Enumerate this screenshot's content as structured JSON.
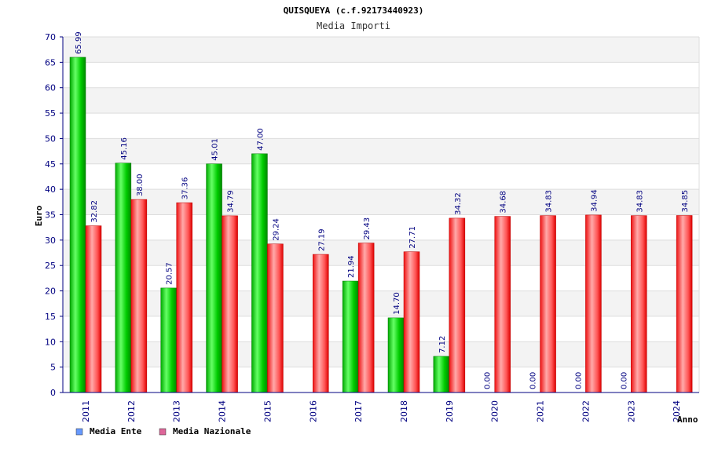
{
  "chart_data": {
    "type": "bar",
    "title": "QUISQUEYA (c.f.92173440923)",
    "subtitle": "Media Importi",
    "ylabel": "Euro",
    "xlabel": "Anno",
    "ylim": [
      0,
      70
    ],
    "yticks": [
      0,
      5,
      10,
      15,
      20,
      25,
      30,
      35,
      40,
      45,
      50,
      55,
      60,
      65,
      70
    ],
    "grid": true,
    "legend_position": "bottom-left",
    "categories": [
      "2011",
      "2012",
      "2013",
      "2014",
      "2015",
      "2016",
      "2017",
      "2018",
      "2019",
      "2020",
      "2021",
      "2022",
      "2023",
      "2024"
    ],
    "series": [
      {
        "name": "Media Ente",
        "color": "#00cc00",
        "legend_color": "#6699ff",
        "values": [
          65.99,
          45.16,
          20.57,
          45.01,
          47.0,
          null,
          21.94,
          14.7,
          7.12,
          0.0,
          0.0,
          0.0,
          0.0,
          null
        ],
        "labels": [
          "65.99",
          "45.16",
          "20.57",
          "45.01",
          "47.00",
          "",
          "21.94",
          "14.70",
          "7.12",
          "0.00",
          "0.00",
          "0.00",
          "0.00",
          ""
        ]
      },
      {
        "name": "Media Nazionale",
        "color": "#ff3333",
        "legend_color": "#dd6699",
        "values": [
          32.82,
          38.0,
          37.36,
          34.79,
          29.24,
          27.19,
          29.43,
          27.71,
          34.32,
          34.68,
          34.83,
          34.94,
          34.83,
          34.85
        ],
        "labels": [
          "32.82",
          "38.00",
          "37.36",
          "34.79",
          "29.24",
          "27.19",
          "29.43",
          "27.71",
          "34.32",
          "34.68",
          "34.83",
          "34.94",
          "34.83",
          "34.85"
        ]
      }
    ]
  }
}
